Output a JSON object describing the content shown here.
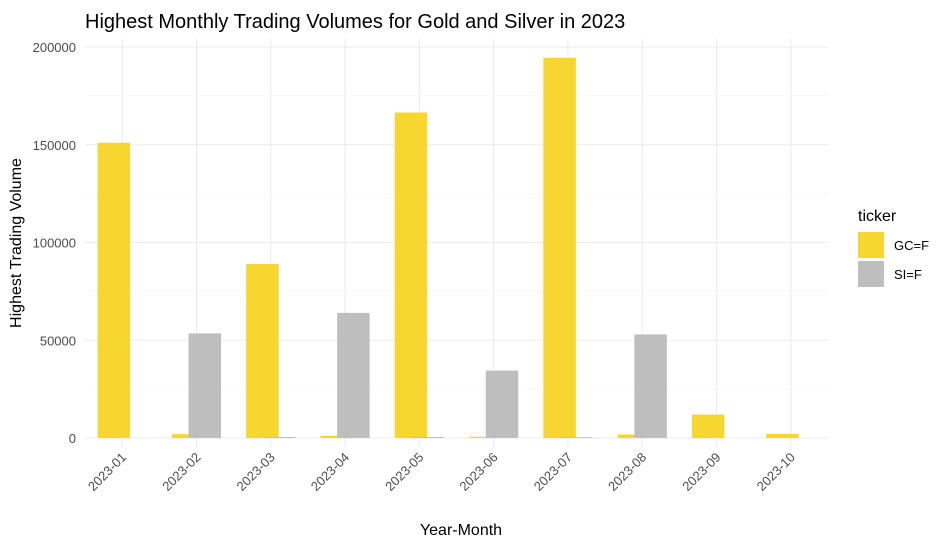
{
  "chart_data": {
    "type": "bar",
    "title": "Highest Monthly Trading Volumes for Gold and Silver in 2023",
    "xlabel": "Year-Month",
    "ylabel": "Highest Trading Volume",
    "categories": [
      "2023-01",
      "2023-02",
      "2023-03",
      "2023-04",
      "2023-05",
      "2023-06",
      "2023-07",
      "2023-08",
      "2023-09",
      "2023-10"
    ],
    "series": [
      {
        "name": "GC=F",
        "color": "#F7D630",
        "values": [
          151000,
          2000,
          89000,
          1200,
          166500,
          600,
          194500,
          1800,
          12000,
          2100
        ]
      },
      {
        "name": "SI=F",
        "color": "#BEBEBE",
        "values": [
          0,
          53500,
          500,
          64000,
          500,
          34500,
          400,
          53000,
          0,
          0
        ]
      }
    ],
    "ylim": [
      0,
      200000
    ],
    "yticks": [
      0,
      50000,
      100000,
      150000,
      200000
    ],
    "ytick_labels": [
      "0",
      "50000",
      "100000",
      "150000",
      "200000"
    ],
    "grid": true,
    "legend": {
      "title": "ticker",
      "placement": "right"
    }
  }
}
